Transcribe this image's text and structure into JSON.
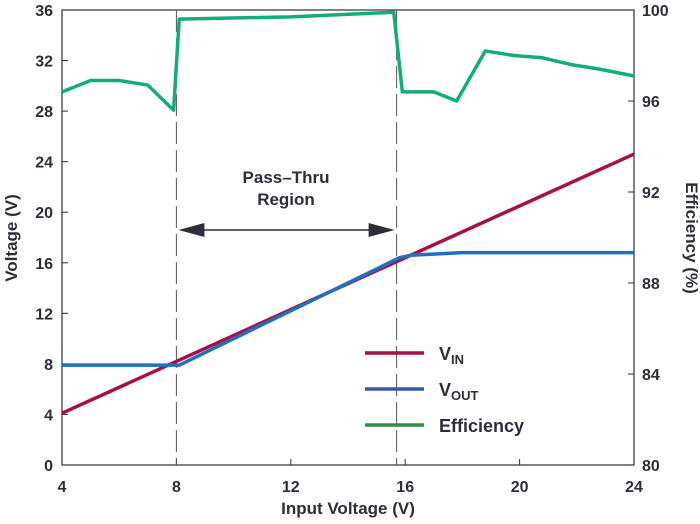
{
  "chart_data": {
    "type": "line",
    "xlabel": "Input Voltage (V)",
    "ylabel": "Voltage (V)",
    "y2label": "Efficiency (%)",
    "xlim": [
      4,
      24
    ],
    "ylim": [
      0,
      36
    ],
    "y2lim": [
      80,
      100
    ],
    "xticks": [
      "4",
      "8",
      "12",
      "16",
      "20",
      "24"
    ],
    "yticks": [
      "0",
      "4",
      "8",
      "12",
      "16",
      "20",
      "24",
      "28",
      "32",
      "36"
    ],
    "y2ticks": [
      "80",
      "84",
      "88",
      "92",
      "96",
      "100"
    ],
    "grid": false,
    "legend_position": "bottom-right",
    "series": [
      {
        "name": "VIN",
        "label_main": "V",
        "label_sub": "IN",
        "axis": "left",
        "color": "#a70f47",
        "legend_color": "#a70f47",
        "points": [
          [
            4,
            4.1
          ],
          [
            24,
            24.6
          ]
        ]
      },
      {
        "name": "VOUT",
        "label_main": "V",
        "label_sub": "OUT",
        "axis": "left",
        "color": "#1f70c1",
        "legend_color": "#3556a8",
        "points": [
          [
            4,
            7.9
          ],
          [
            8.1,
            7.9
          ],
          [
            12,
            12.2
          ],
          [
            15.8,
            16.4
          ],
          [
            16.2,
            16.6
          ],
          [
            18,
            16.8
          ],
          [
            24,
            16.8
          ]
        ]
      },
      {
        "name": "Efficiency",
        "label_main": "Efficiency",
        "label_sub": "",
        "axis": "right",
        "color": "#12ad7d",
        "legend_color": "#2e8b4c",
        "points": [
          [
            4,
            96.4
          ],
          [
            5,
            96.9
          ],
          [
            6,
            96.9
          ],
          [
            7,
            96.7
          ],
          [
            7.9,
            95.6
          ],
          [
            8.1,
            99.6
          ],
          [
            12,
            99.7
          ],
          [
            15.6,
            99.9
          ],
          [
            15.9,
            96.4
          ],
          [
            17,
            96.4
          ],
          [
            17.8,
            96.0
          ],
          [
            18.8,
            98.2
          ],
          [
            19.8,
            98.0
          ],
          [
            20.8,
            97.9
          ],
          [
            21.8,
            97.6
          ],
          [
            22.8,
            97.4
          ],
          [
            24,
            97.1
          ]
        ]
      }
    ],
    "annotations": {
      "region_label_line1": "Pass–Thru",
      "region_label_line2": "Region",
      "region_x": [
        8,
        15.7
      ]
    }
  }
}
